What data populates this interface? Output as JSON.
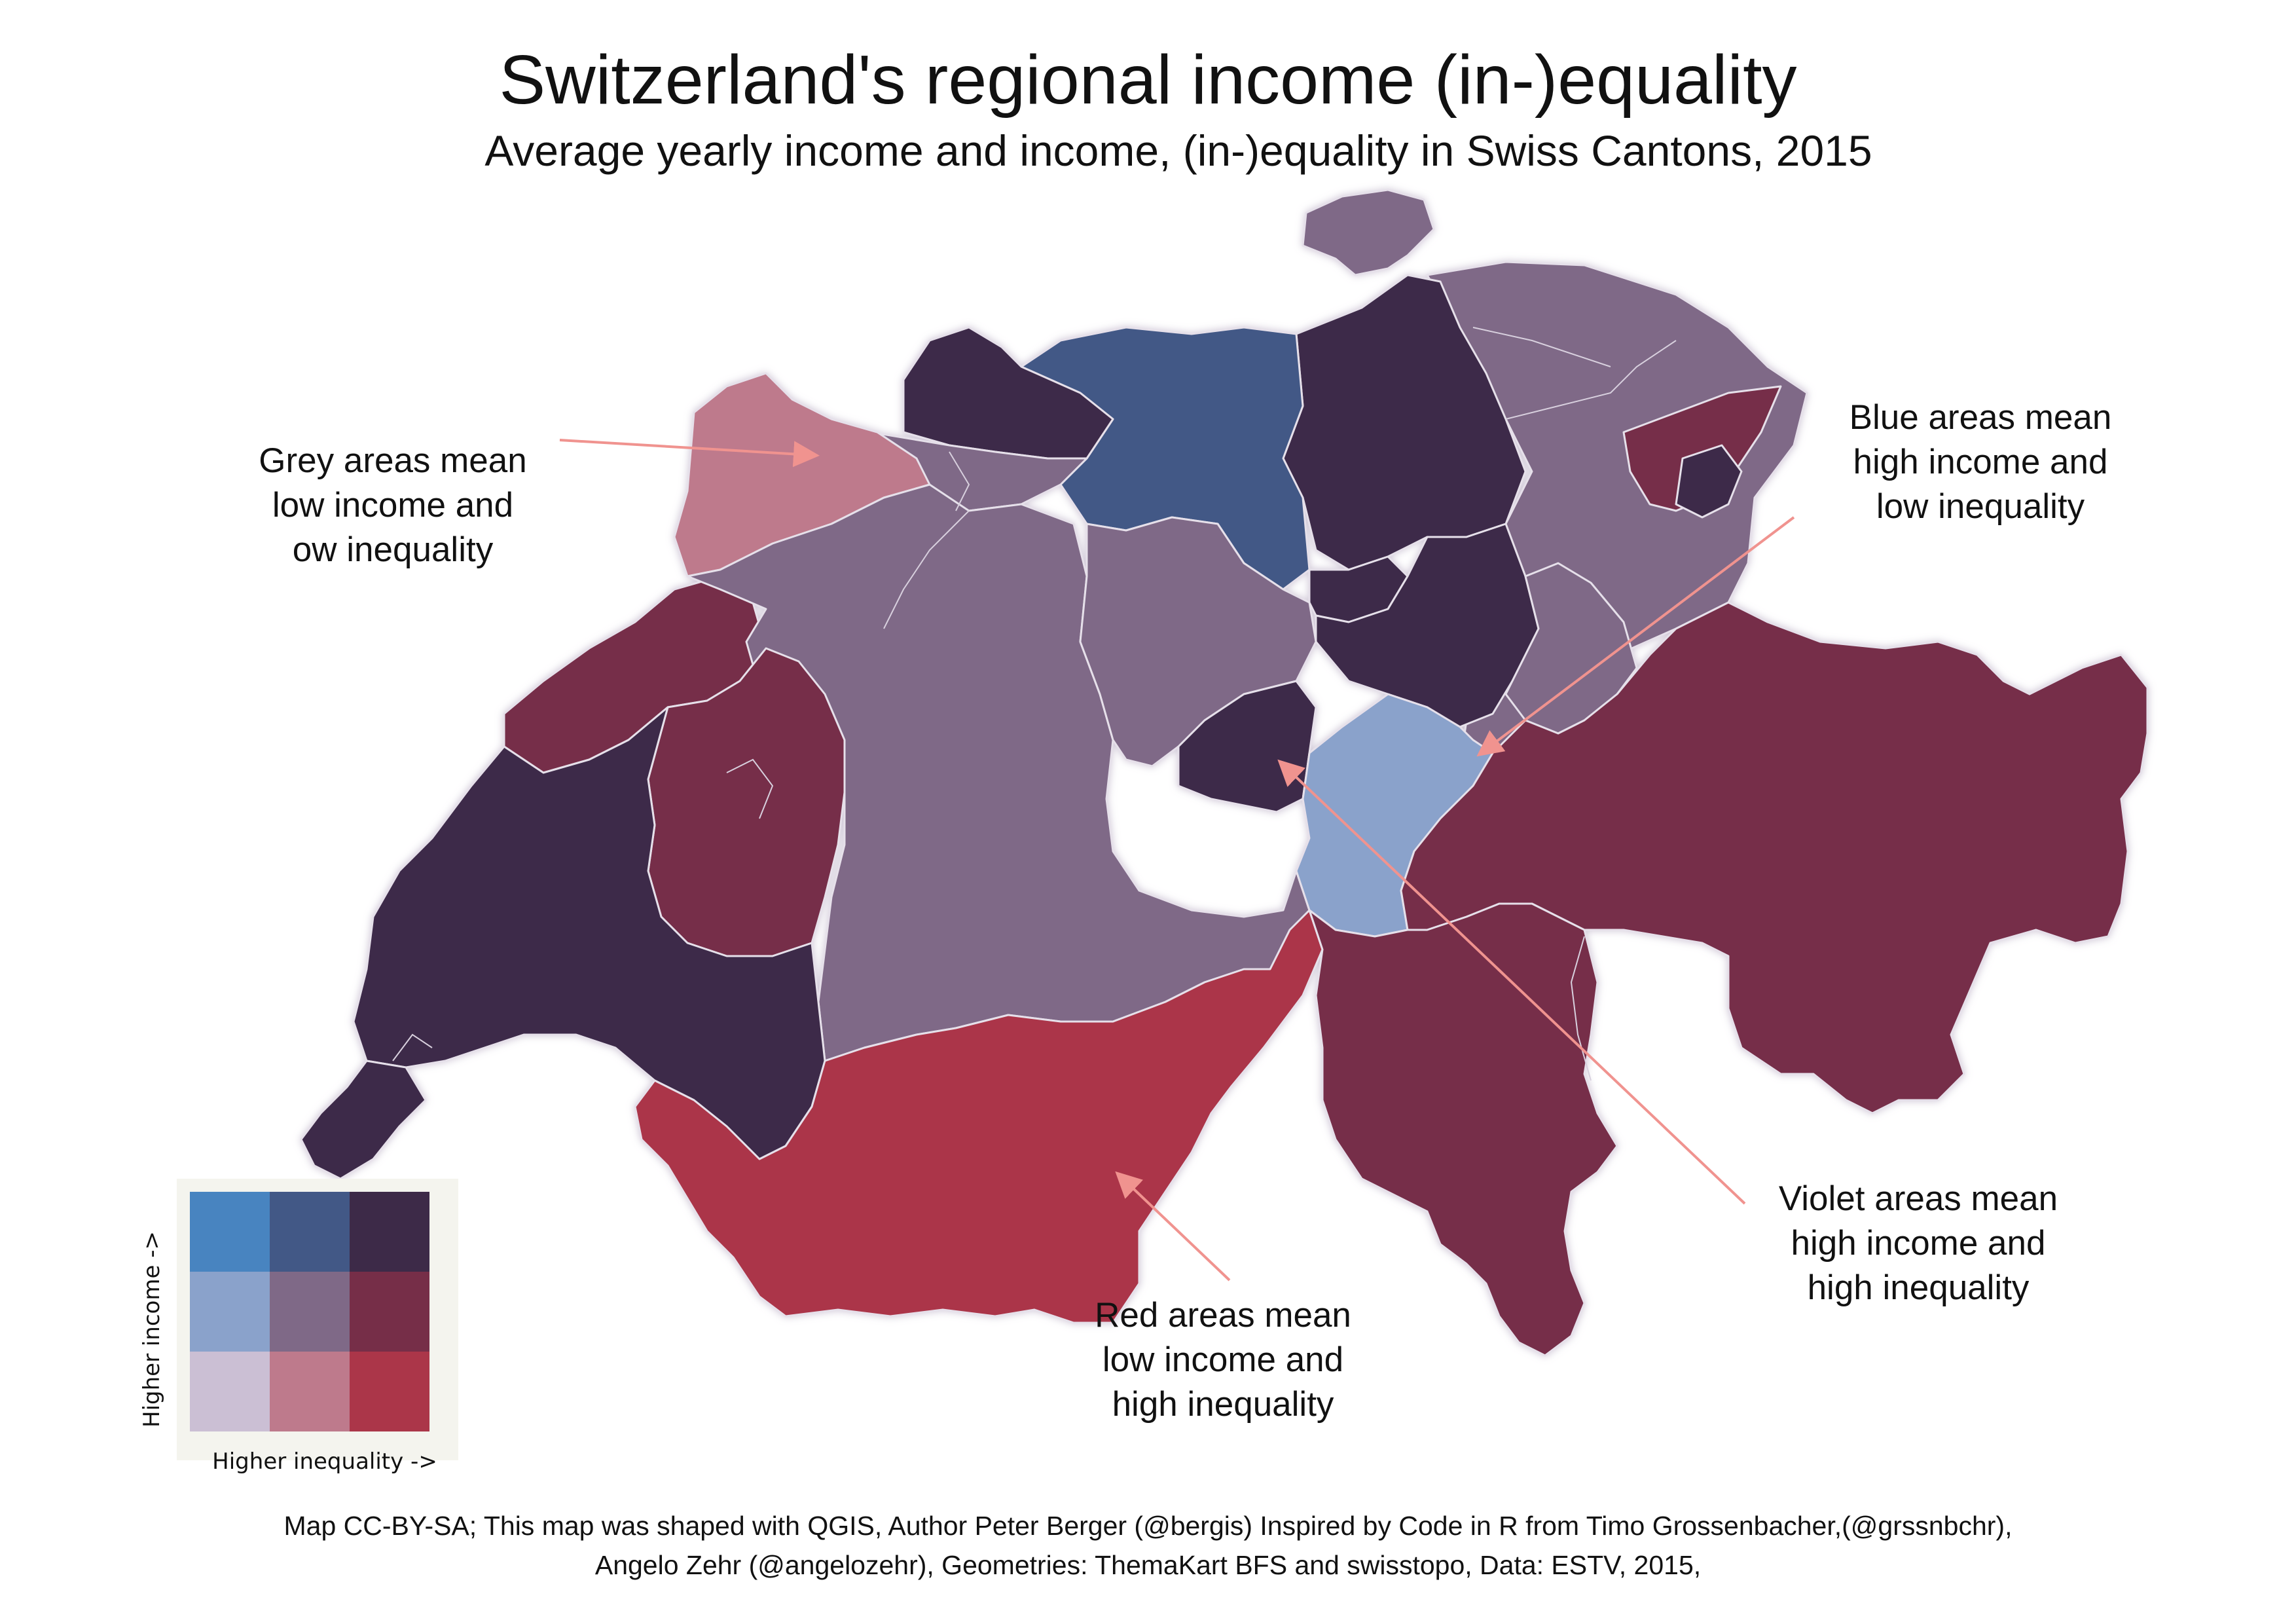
{
  "title": "Switzerland's regional income (in-)equality",
  "subtitle": "Average yearly income and income, (in-)equality in Swiss Cantons, 2015",
  "annotations": {
    "grey": [
      "Grey areas mean",
      "low income and",
      "ow inequality"
    ],
    "blue": [
      "Blue areas mean",
      "high income and",
      "low inequality"
    ],
    "violet": [
      "Violet areas mean",
      "high income and",
      "high inequality"
    ],
    "red": [
      "Red areas mean",
      "low income and",
      "high inequality"
    ]
  },
  "legend": {
    "x_label": "Higher inequality ->",
    "y_label": "Higher income ->",
    "grid": [
      [
        "#4884c0",
        "#425886",
        "#3d2a48"
      ],
      [
        "#8aa2cb",
        "#7f6987",
        "#762e48"
      ],
      [
        "#cbbfd4",
        "#be7a8c",
        "#ab3649"
      ]
    ]
  },
  "colors": {
    "low_income_low_inequality": "#cbbfd4",
    "low_income_mid_inequality": "#be7a8c",
    "low_income_high_inequality": "#ab3649",
    "mid_income_low_inequality": "#8aa2cb",
    "mid_income_mid_inequality": "#7f6987",
    "mid_income_high_inequality": "#762e48",
    "high_income_low_inequality": "#4884c0",
    "high_income_mid_inequality": "#425886",
    "high_income_high_inequality": "#3d2a48",
    "arrow": "#f0938f",
    "border": "#e6e0ea"
  },
  "footer": {
    "line1": "Map CC-BY-SA; This map was shaped with QGIS, Author Peter Berger (@bergis) Inspired by Code in R from Timo Grossenbacher,(@grssnbchr),",
    "line2": "Angelo Zehr (@angelozehr), Geometries: ThemaKart BFS and swisstopo, Data: ESTV, 2015,"
  }
}
